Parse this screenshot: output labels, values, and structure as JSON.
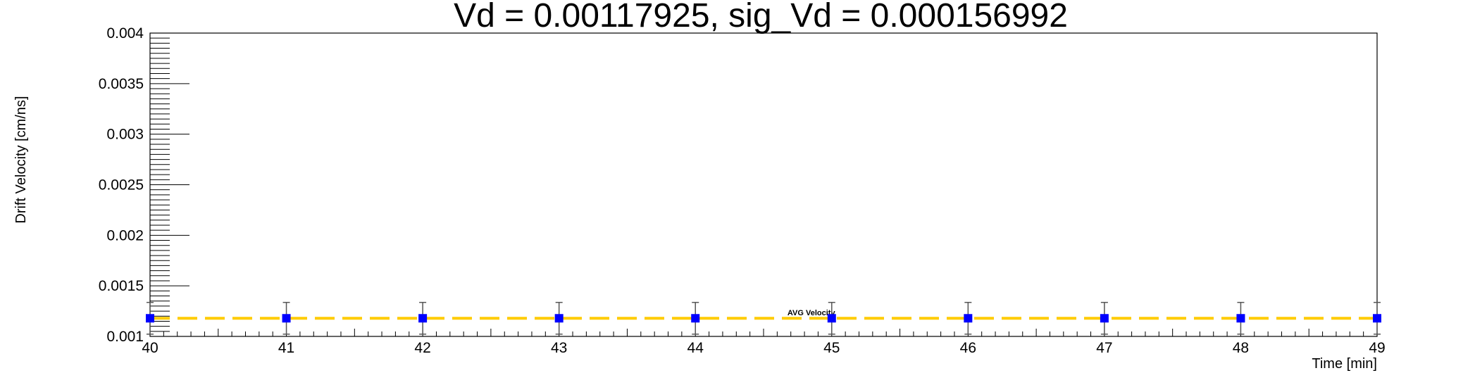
{
  "chart_data": {
    "type": "scatter",
    "title": "Vd = 0.00117925, sig_Vd = 0.000156992",
    "xlabel": "Time [min]",
    "ylabel": "Drift Velocity [cm/ns]",
    "xlim": [
      40,
      49
    ],
    "ylim": [
      0.001,
      0.004
    ],
    "x_ticks": [
      "40",
      "41",
      "42",
      "43",
      "44",
      "45",
      "46",
      "47",
      "48",
      "49"
    ],
    "y_ticks": [
      "0.001",
      "0.0015",
      "0.002",
      "0.0025",
      "0.003",
      "0.0035",
      "0.004"
    ],
    "grid": false,
    "series": [
      {
        "x": [
          40,
          41,
          42,
          43,
          44,
          45,
          46,
          47,
          48,
          49
        ],
        "y": [
          0.00117925,
          0.00117925,
          0.00117925,
          0.00117925,
          0.00117925,
          0.00117925,
          0.00117925,
          0.00117925,
          0.00117925,
          0.00117925
        ],
        "error": [
          0.000156992,
          0.000156992,
          0.000156992,
          0.000156992,
          0.000156992,
          0.000156992,
          0.000156992,
          0.000156992,
          0.000156992,
          0.000156992
        ],
        "color": "#0000ff"
      }
    ],
    "reference_line": {
      "label": "AVG Velocity",
      "y": 0.00117925,
      "color": "#ffcc00",
      "style": "dashed"
    }
  }
}
